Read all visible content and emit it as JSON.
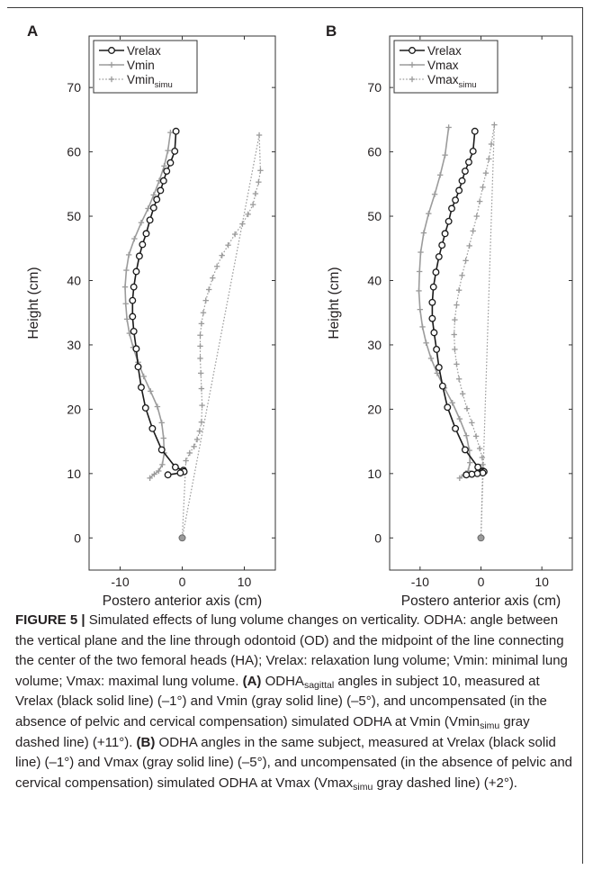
{
  "chart_data": [
    {
      "type": "line",
      "panel_label": "A",
      "xlabel": "Postero anterior axis (cm)",
      "ylabel": "Height (cm)",
      "xlim": [
        -15,
        15
      ],
      "ylim": [
        -5,
        78
      ],
      "xticks": [
        "-10",
        "0",
        "10"
      ],
      "yticks": [
        "0",
        "10",
        "20",
        "30",
        "40",
        "50",
        "60",
        "70"
      ],
      "grid": false,
      "legend_position": "top-left",
      "series": [
        {
          "name": "Vrelax",
          "legend_label": "Vrelax",
          "legend_sub": "",
          "style": "black-solid-circle",
          "x": [
            -1,
            -1.2,
            -1.9,
            -2.5,
            -3,
            -3.5,
            -4.1,
            -4.6,
            -5.2,
            -5.8,
            -6.4,
            -6.9,
            -7.4,
            -7.8,
            -8,
            -8,
            -7.8,
            -7.4,
            -7.1,
            -6.6,
            -5.9,
            -4.8,
            -3.3,
            -1.1,
            0.2,
            0.3,
            -0.3,
            -2.3
          ],
          "y": [
            63.2,
            60.1,
            58.3,
            57,
            55.5,
            54,
            52.6,
            51.3,
            49.4,
            47.3,
            45.6,
            43.8,
            41.4,
            39,
            36.9,
            34.4,
            32.1,
            29.4,
            26.6,
            23.4,
            20.2,
            17,
            13.7,
            11,
            10.5,
            10.3,
            10.1,
            9.8
          ]
        },
        {
          "name": "Vmin",
          "legend_label": "Vmin",
          "legend_sub": "",
          "style": "gray-solid-plus",
          "x": [
            -1.9,
            -2.3,
            -2.9,
            -3.7,
            -4.6,
            -5.5,
            -6.6,
            -7.7,
            -8.6,
            -9,
            -9.2,
            -9.1,
            -8.9,
            -8.5,
            -7.9,
            -7.1,
            -6.2,
            -5.1,
            -4,
            -3.3,
            -3,
            -2.9,
            -3.2,
            -3.8,
            -4.5,
            -5.2
          ],
          "y": [
            63,
            60.2,
            57.8,
            55.5,
            53.3,
            51.2,
            49,
            46.5,
            44,
            41.6,
            39,
            36.4,
            34,
            31.8,
            29.6,
            27.3,
            25.1,
            22.8,
            20.4,
            17.9,
            15.5,
            13.2,
            11.4,
            10.4,
            9.9,
            9.3
          ]
        },
        {
          "name": "Vmin simu",
          "legend_label": "Vmin",
          "legend_sub": "simu",
          "style": "gray-dotted-plus",
          "x": [
            0,
            12.4,
            12.6,
            12.3,
            11.8,
            11.4,
            10.6,
            9.7,
            8.5,
            7.4,
            6.4,
            5.6,
            4.9,
            4.3,
            3.8,
            3.4,
            3.1,
            2.9,
            2.9,
            2.9,
            3,
            3.1,
            3.2,
            3.1,
            2.8,
            2.4,
            1.9,
            1.2,
            0.6,
            0
          ],
          "y": [
            0,
            62.6,
            57.1,
            55.3,
            53.5,
            51.8,
            50.3,
            48.8,
            47.2,
            45.5,
            43.9,
            42.2,
            40.4,
            38.6,
            36.9,
            35,
            33.3,
            31.5,
            29.8,
            27.9,
            25.6,
            23.2,
            20.6,
            18,
            16.6,
            15.3,
            14.2,
            13.2,
            12,
            0
          ]
        }
      ]
    },
    {
      "type": "line",
      "panel_label": "B",
      "xlabel": "Postero anterior axis (cm)",
      "ylabel": "Height (cm)",
      "xlim": [
        -15,
        15
      ],
      "ylim": [
        -5,
        78
      ],
      "xticks": [
        "-10",
        "0",
        "10"
      ],
      "yticks": [
        "0",
        "10",
        "20",
        "30",
        "40",
        "50",
        "60",
        "70"
      ],
      "grid": false,
      "legend_position": "top-left",
      "series": [
        {
          "name": "Vrelax",
          "legend_label": "Vrelax",
          "legend_sub": "",
          "style": "black-solid-circle",
          "x": [
            -1,
            -1.3,
            -2,
            -2.6,
            -3.1,
            -3.6,
            -4.2,
            -4.8,
            -5.3,
            -5.9,
            -6.4,
            -6.9,
            -7.4,
            -7.8,
            -8,
            -8,
            -7.7,
            -7.3,
            -6.9,
            -6.3,
            -5.5,
            -4.2,
            -2.6,
            -0.5,
            0.3,
            0.5,
            0.3,
            -0.6,
            -1.5,
            -2.4
          ],
          "y": [
            63.2,
            60.1,
            58.4,
            57,
            55.5,
            54,
            52.5,
            51.2,
            49.2,
            47.3,
            45.5,
            43.7,
            41.3,
            39,
            36.6,
            34.1,
            31.9,
            29.3,
            26.5,
            23.6,
            20.3,
            17,
            13.7,
            11,
            10.4,
            10.3,
            10.1,
            10,
            9.9,
            9.8
          ]
        },
        {
          "name": "Vmax",
          "legend_label": "Vmax",
          "legend_sub": "",
          "style": "gray-solid-plus",
          "x": [
            -5.3,
            -5.9,
            -6.7,
            -7.6,
            -8.6,
            -9.4,
            -9.9,
            -10.1,
            -10.2,
            -10,
            -9.6,
            -9,
            -8.2,
            -7.2,
            -6,
            -4.7,
            -3.5,
            -2.4,
            -1.9,
            -1.8,
            -2.1,
            -2.8,
            -3.5
          ],
          "y": [
            63.8,
            59.5,
            56.4,
            53.4,
            50.4,
            47.4,
            44.4,
            41.4,
            38.4,
            35.5,
            32.8,
            30.3,
            27.9,
            25.6,
            23.3,
            21,
            18.5,
            15.9,
            13.6,
            11.7,
            10.4,
            9.8,
            9.3
          ]
        },
        {
          "name": "Vmax simu",
          "legend_label": "Vmax",
          "legend_sub": "simu",
          "style": "gray-dotted-plus",
          "x": [
            0,
            2.2,
            1.7,
            1.3,
            0.8,
            0.3,
            -0.2,
            -0.7,
            -1.3,
            -1.9,
            -2.5,
            -3.1,
            -3.6,
            -4,
            -4.3,
            -4.4,
            -4.3,
            -4,
            -3.6,
            -3,
            -2.3,
            -1.5,
            -0.8,
            -0.2,
            0.2,
            0.3,
            0
          ],
          "y": [
            0,
            64.2,
            61.2,
            58.9,
            56.7,
            54.5,
            52.3,
            50,
            47.7,
            45.4,
            43.1,
            40.8,
            38.5,
            36.2,
            33.9,
            31.6,
            29.3,
            27,
            24.7,
            22.4,
            20.1,
            17.9,
            15.8,
            13.9,
            12.5,
            11.4,
            0
          ]
        }
      ]
    }
  ],
  "caption": {
    "figure_label": "FIGURE 5 |",
    "p1": " Simulated effects of lung volume changes on verticality. ODHA: angle between the vertical plane and the line through odontoid (OD) and the midpoint of the line connecting the center of the two femoral heads (HA); Vrelax: relaxation lung volume; Vmin: minimal lung volume; Vmax: maximal lung volume. ",
    "a_label": "(A)",
    "p2": " ODHA",
    "p2_sub": "sagittal",
    "p3": " angles in subject 10, measured at Vrelax (black solid line) (–1°) and Vmin (gray solid line) (–5°), and uncompensated (in the absence of pelvic and cervical compensation) simulated ODHA at Vmin (Vmin",
    "p3_sub": "simu",
    "p4": " gray dashed line) (+11°). ",
    "b_label": "(B)",
    "p5": " ODHA angles in the same subject, measured at Vrelax (black solid line) (–1°) and Vmax (gray solid line) (–5°), and uncompensated (in the absence of pelvic and cervical compensation) simulated ODHA at Vmax (Vmax",
    "p5_sub": "simu",
    "p6": " gray dashed line) (+2°)."
  }
}
